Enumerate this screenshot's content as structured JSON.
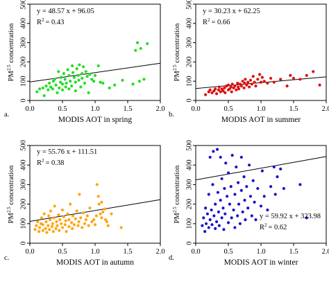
{
  "chart_data": [
    {
      "type": "scatter",
      "panel_label": "a.",
      "xlabel": "MODIS AOT in spring",
      "ylabel": "PM2.5 concentration",
      "xlim": [
        0.0,
        2.0
      ],
      "ylim": [
        0,
        500
      ],
      "xticks": [
        "0.0",
        "0.5",
        "1.0",
        "1.5",
        "2.0"
      ],
      "yticks": [
        "0",
        "100",
        "200",
        "300",
        "400",
        "500"
      ],
      "color": "#22dd22",
      "equation": "y = 48.57 x + 96.05",
      "r2_label": "R",
      "r2_value": "= 0.43",
      "legend_position": "top-left",
      "fit": {
        "slope": 48.57,
        "intercept": 96.05
      },
      "points": [
        [
          0.11,
          45
        ],
        [
          0.15,
          60
        ],
        [
          0.2,
          65
        ],
        [
          0.22,
          25
        ],
        [
          0.25,
          75
        ],
        [
          0.28,
          55
        ],
        [
          0.3,
          90
        ],
        [
          0.32,
          70
        ],
        [
          0.35,
          60
        ],
        [
          0.36,
          100
        ],
        [
          0.38,
          110
        ],
        [
          0.4,
          80
        ],
        [
          0.42,
          40
        ],
        [
          0.44,
          150
        ],
        [
          0.45,
          65
        ],
        [
          0.47,
          95
        ],
        [
          0.48,
          120
        ],
        [
          0.5,
          85
        ],
        [
          0.5,
          55
        ],
        [
          0.52,
          140
        ],
        [
          0.54,
          110
        ],
        [
          0.55,
          70
        ],
        [
          0.56,
          90
        ],
        [
          0.58,
          160
        ],
        [
          0.6,
          60
        ],
        [
          0.6,
          130
        ],
        [
          0.62,
          100
        ],
        [
          0.64,
          75
        ],
        [
          0.65,
          180
        ],
        [
          0.66,
          145
        ],
        [
          0.68,
          120
        ],
        [
          0.7,
          50
        ],
        [
          0.7,
          95
        ],
        [
          0.72,
          165
        ],
        [
          0.74,
          130
        ],
        [
          0.75,
          105
        ],
        [
          0.76,
          185
        ],
        [
          0.78,
          70
        ],
        [
          0.8,
          140
        ],
        [
          0.8,
          115
        ],
        [
          0.82,
          175
        ],
        [
          0.84,
          90
        ],
        [
          0.86,
          150
        ],
        [
          0.88,
          125
        ],
        [
          0.9,
          40
        ],
        [
          0.92,
          135
        ],
        [
          0.95,
          110
        ],
        [
          0.98,
          100
        ],
        [
          1.0,
          130
        ],
        [
          1.05,
          180
        ],
        [
          1.08,
          95
        ],
        [
          1.12,
          90
        ],
        [
          1.22,
          65
        ],
        [
          1.3,
          80
        ],
        [
          1.42,
          105
        ],
        [
          1.58,
          85
        ],
        [
          1.62,
          260
        ],
        [
          1.65,
          300
        ],
        [
          1.68,
          100
        ],
        [
          1.7,
          270
        ],
        [
          1.75,
          110
        ],
        [
          1.8,
          295
        ]
      ]
    },
    {
      "type": "scatter",
      "panel_label": "b.",
      "xlabel": "MODIS AOT in summer",
      "ylabel": "PM2.5 concentration",
      "xlim": [
        0.0,
        2.0
      ],
      "ylim": [
        0,
        500
      ],
      "xticks": [
        "0.0",
        "0.5",
        "1.0",
        "1.5",
        "2.0"
      ],
      "yticks": [
        "0",
        "100",
        "200",
        "300",
        "400",
        "500"
      ],
      "color": "#dd1111",
      "equation": "y = 30.23 x + 62.25",
      "r2_label": "R",
      "r2_value": "= 0.66",
      "legend_position": "top-left",
      "fit": {
        "slope": 30.23,
        "intercept": 62.25
      },
      "points": [
        [
          0.15,
          30
        ],
        [
          0.2,
          45
        ],
        [
          0.22,
          55
        ],
        [
          0.25,
          40
        ],
        [
          0.28,
          50
        ],
        [
          0.3,
          60
        ],
        [
          0.32,
          35
        ],
        [
          0.35,
          55
        ],
        [
          0.36,
          70
        ],
        [
          0.38,
          45
        ],
        [
          0.4,
          60
        ],
        [
          0.42,
          50
        ],
        [
          0.44,
          65
        ],
        [
          0.45,
          40
        ],
        [
          0.47,
          75
        ],
        [
          0.5,
          55
        ],
        [
          0.5,
          80
        ],
        [
          0.52,
          60
        ],
        [
          0.54,
          70
        ],
        [
          0.55,
          45
        ],
        [
          0.56,
          85
        ],
        [
          0.58,
          65
        ],
        [
          0.6,
          75
        ],
        [
          0.62,
          55
        ],
        [
          0.64,
          90
        ],
        [
          0.65,
          70
        ],
        [
          0.66,
          60
        ],
        [
          0.68,
          85
        ],
        [
          0.7,
          75
        ],
        [
          0.72,
          100
        ],
        [
          0.74,
          65
        ],
        [
          0.75,
          90
        ],
        [
          0.76,
          110
        ],
        [
          0.78,
          80
        ],
        [
          0.8,
          95
        ],
        [
          0.82,
          70
        ],
        [
          0.84,
          105
        ],
        [
          0.86,
          85
        ],
        [
          0.88,
          125
        ],
        [
          0.9,
          95
        ],
        [
          0.92,
          75
        ],
        [
          0.95,
          110
        ],
        [
          0.98,
          135
        ],
        [
          1.0,
          95
        ],
        [
          1.02,
          120
        ],
        [
          1.05,
          100
        ],
        [
          1.1,
          90
        ],
        [
          1.15,
          115
        ],
        [
          1.2,
          95
        ],
        [
          1.3,
          110
        ],
        [
          1.4,
          75
        ],
        [
          1.45,
          130
        ],
        [
          1.5,
          115
        ],
        [
          1.6,
          110
        ],
        [
          1.7,
          130
        ],
        [
          1.8,
          150
        ],
        [
          1.9,
          80
        ]
      ]
    },
    {
      "type": "scatter",
      "panel_label": "c.",
      "xlabel": "MODIS AOT in autumn",
      "ylabel": "PM2.5 concentration",
      "xlim": [
        0.0,
        2.0
      ],
      "ylim": [
        0,
        500
      ],
      "xticks": [
        "0.0",
        "0.5",
        "1.0",
        "1.5",
        "2.0"
      ],
      "yticks": [
        "0",
        "100",
        "200",
        "300",
        "400",
        "500"
      ],
      "color": "#ffa511",
      "equation": "y = 55.76 x + 111.51",
      "r2_label": "R",
      "r2_value": "= 0.38",
      "legend_position": "top-left",
      "fit": {
        "slope": 55.76,
        "intercept": 111.51
      },
      "points": [
        [
          0.08,
          70
        ],
        [
          0.1,
          90
        ],
        [
          0.12,
          110
        ],
        [
          0.14,
          60
        ],
        [
          0.15,
          80
        ],
        [
          0.17,
          100
        ],
        [
          0.18,
          130
        ],
        [
          0.2,
          65
        ],
        [
          0.2,
          95
        ],
        [
          0.22,
          150
        ],
        [
          0.24,
          75
        ],
        [
          0.25,
          110
        ],
        [
          0.26,
          55
        ],
        [
          0.28,
          90
        ],
        [
          0.29,
          140
        ],
        [
          0.3,
          70
        ],
        [
          0.31,
          120
        ],
        [
          0.32,
          165
        ],
        [
          0.34,
          85
        ],
        [
          0.35,
          100
        ],
        [
          0.36,
          60
        ],
        [
          0.37,
          130
        ],
        [
          0.38,
          190
        ],
        [
          0.4,
          75
        ],
        [
          0.41,
          110
        ],
        [
          0.42,
          90
        ],
        [
          0.44,
          145
        ],
        [
          0.45,
          65
        ],
        [
          0.46,
          120
        ],
        [
          0.48,
          100
        ],
        [
          0.5,
          80
        ],
        [
          0.5,
          170
        ],
        [
          0.52,
          135
        ],
        [
          0.54,
          95
        ],
        [
          0.55,
          115
        ],
        [
          0.56,
          60
        ],
        [
          0.58,
          150
        ],
        [
          0.6,
          85
        ],
        [
          0.6,
          120
        ],
        [
          0.62,
          200
        ],
        [
          0.64,
          105
        ],
        [
          0.65,
          75
        ],
        [
          0.66,
          140
        ],
        [
          0.68,
          95
        ],
        [
          0.7,
          125
        ],
        [
          0.72,
          165
        ],
        [
          0.74,
          90
        ],
        [
          0.75,
          110
        ],
        [
          0.76,
          250
        ],
        [
          0.78,
          130
        ],
        [
          0.8,
          80
        ],
        [
          0.82,
          155
        ],
        [
          0.84,
          100
        ],
        [
          0.86,
          120
        ],
        [
          0.88,
          140
        ],
        [
          0.9,
          90
        ],
        [
          0.92,
          180
        ],
        [
          0.95,
          110
        ],
        [
          0.98,
          120
        ],
        [
          1.0,
          95
        ],
        [
          1.02,
          140
        ],
        [
          1.03,
          300
        ],
        [
          1.05,
          240
        ],
        [
          1.06,
          200
        ],
        [
          1.08,
          150
        ],
        [
          1.1,
          130
        ],
        [
          1.1,
          210
        ],
        [
          1.12,
          160
        ],
        [
          1.15,
          175
        ],
        [
          1.16,
          120
        ],
        [
          1.18,
          110
        ],
        [
          1.2,
          90
        ],
        [
          1.25,
          150
        ],
        [
          1.4,
          80
        ]
      ]
    },
    {
      "type": "scatter",
      "panel_label": "d.",
      "xlabel": "MODIS AOT in winter",
      "ylabel": "PM2.5 concentration",
      "xlim": [
        0.0,
        2.0
      ],
      "ylim": [
        0,
        500
      ],
      "xticks": [
        "0.0",
        "0.5",
        "1.0",
        "1.5",
        "2.0"
      ],
      "yticks": [
        "0",
        "100",
        "200",
        "300",
        "400",
        "500"
      ],
      "color": "#1515cc",
      "equation": "y = 59.92 x + 323.98",
      "r2_label": "R",
      "r2_value": "= 0.62",
      "legend_position": "bottom-right",
      "fit": {
        "slope": 59.92,
        "intercept": 323.98
      },
      "points": [
        [
          0.1,
          90
        ],
        [
          0.12,
          130
        ],
        [
          0.14,
          60
        ],
        [
          0.15,
          180
        ],
        [
          0.16,
          100
        ],
        [
          0.18,
          150
        ],
        [
          0.2,
          80
        ],
        [
          0.2,
          250
        ],
        [
          0.22,
          120
        ],
        [
          0.22,
          440
        ],
        [
          0.24,
          170
        ],
        [
          0.25,
          95
        ],
        [
          0.26,
          300
        ],
        [
          0.27,
          470
        ],
        [
          0.28,
          140
        ],
        [
          0.3,
          200
        ],
        [
          0.3,
          75
        ],
        [
          0.32,
          110
        ],
        [
          0.33,
          480
        ],
        [
          0.34,
          260
        ],
        [
          0.35,
          160
        ],
        [
          0.36,
          90
        ],
        [
          0.38,
          220
        ],
        [
          0.38,
          440
        ],
        [
          0.4,
          130
        ],
        [
          0.4,
          330
        ],
        [
          0.42,
          180
        ],
        [
          0.43,
          70
        ],
        [
          0.44,
          280
        ],
        [
          0.45,
          150
        ],
        [
          0.46,
          410
        ],
        [
          0.48,
          240
        ],
        [
          0.5,
          105
        ],
        [
          0.5,
          360
        ],
        [
          0.52,
          200
        ],
        [
          0.54,
          290
        ],
        [
          0.55,
          130
        ],
        [
          0.56,
          450
        ],
        [
          0.58,
          170
        ],
        [
          0.6,
          250
        ],
        [
          0.6,
          80
        ],
        [
          0.62,
          390
        ],
        [
          0.64,
          140
        ],
        [
          0.65,
          310
        ],
        [
          0.66,
          200
        ],
        [
          0.68,
          100
        ],
        [
          0.7,
          270
        ],
        [
          0.7,
          440
        ],
        [
          0.72,
          160
        ],
        [
          0.74,
          340
        ],
        [
          0.75,
          220
        ],
        [
          0.76,
          120
        ],
        [
          0.78,
          290
        ],
        [
          0.8,
          180
        ],
        [
          0.82,
          400
        ],
        [
          0.84,
          240
        ],
        [
          0.86,
          140
        ],
        [
          0.88,
          320
        ],
        [
          0.9,
          210
        ],
        [
          0.92,
          120
        ],
        [
          0.95,
          280
        ],
        [
          1.0,
          190
        ],
        [
          1.02,
          370
        ],
        [
          1.05,
          240
        ],
        [
          1.1,
          170
        ],
        [
          1.15,
          290
        ],
        [
          1.2,
          390
        ],
        [
          1.22,
          250
        ],
        [
          1.25,
          340
        ],
        [
          1.3,
          380
        ],
        [
          1.35,
          280
        ],
        [
          1.6,
          300
        ],
        [
          1.7,
          130
        ]
      ]
    }
  ]
}
